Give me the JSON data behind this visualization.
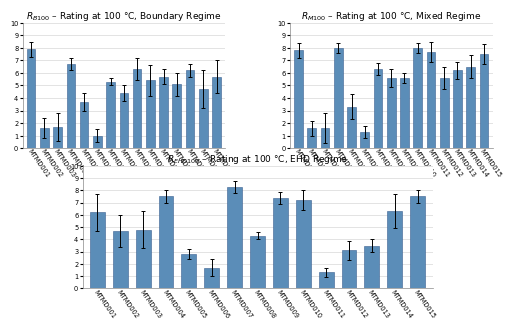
{
  "categories": [
    "MTMD001",
    "MTMD002",
    "MTMD003",
    "MTMD004",
    "MTMD005",
    "MTMD006",
    "MTMD007",
    "MTMD008",
    "MTMD009",
    "MTMD010",
    "MTMD011",
    "MTMD012",
    "MTMD013",
    "MTMD014",
    "MTMD015"
  ],
  "boundary_values": [
    7.9,
    1.6,
    1.7,
    6.7,
    3.7,
    1.0,
    5.3,
    4.4,
    6.3,
    5.4,
    5.7,
    5.1,
    6.2,
    4.7,
    5.7
  ],
  "boundary_errors": [
    0.6,
    0.8,
    1.1,
    0.5,
    0.7,
    0.5,
    0.3,
    0.6,
    0.9,
    1.2,
    0.6,
    0.9,
    0.5,
    1.5,
    1.3
  ],
  "mixed_values": [
    7.8,
    1.6,
    1.6,
    8.0,
    3.3,
    1.3,
    6.3,
    5.6,
    5.6,
    8.0,
    7.7,
    5.6,
    6.2,
    6.5,
    7.5
  ],
  "mixed_errors": [
    0.6,
    0.6,
    1.2,
    0.4,
    1.0,
    0.5,
    0.5,
    0.7,
    0.4,
    0.4,
    0.8,
    0.9,
    0.7,
    0.9,
    0.8
  ],
  "ehd_values": [
    6.2,
    4.7,
    4.8,
    7.5,
    2.8,
    1.7,
    8.3,
    4.3,
    7.4,
    7.2,
    1.3,
    3.1,
    3.5,
    6.3,
    7.5
  ],
  "ehd_errors": [
    1.5,
    1.3,
    1.5,
    0.5,
    0.4,
    0.7,
    0.5,
    0.3,
    0.5,
    0.8,
    0.4,
    0.8,
    0.5,
    1.4,
    0.5
  ],
  "bar_color": "#5B8DB8",
  "bar_edge_color": "#3A6090",
  "error_color": "black",
  "ylim": [
    0,
    10
  ],
  "yticks": [
    0,
    1,
    2,
    3,
    4,
    5,
    6,
    7,
    8,
    9,
    10
  ],
  "title_boundary": "$R_{B100}$ – Rating at 100 °C, Boundary Regime",
  "title_mixed": "$R_{M100}$ – Rating at 100 °C, Mixed Regime",
  "title_ehd": "$R_{EHD100}$ – Rating at 100 °C, EHD Regime",
  "title_fontsize": 6.5,
  "tick_fontsize": 4.8,
  "background_color": "#ffffff",
  "grid_color": "#d8d8d8",
  "label_rotation": -55,
  "bar_width": 0.65
}
